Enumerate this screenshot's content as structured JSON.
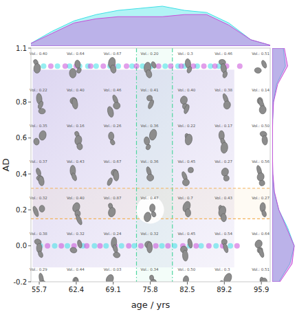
{
  "chart_data": {
    "type": "scatter",
    "x_label": "age / yrs",
    "y_label": "AD",
    "xlim": [
      54.2,
      97.5
    ],
    "ylim": [
      -0.2,
      1.1
    ],
    "xticks": [
      55.7,
      62.4,
      69.1,
      75.8,
      82.5,
      89.2,
      95.9
    ],
    "yticks": [
      -0.2,
      {
        "value": 0,
        "label": "0.0"
      },
      0.2,
      0.4,
      0.6,
      0.8,
      1.1
    ],
    "marker": "circle",
    "series": [
      {
        "color": "#3ee0e6",
        "x": [
          56.5,
          59,
          61.2,
          63,
          64.5,
          66,
          68.5,
          70,
          72.5,
          74.4,
          76,
          78.5,
          80.8,
          82,
          84.3,
          86.7,
          88.2,
          55.9,
          58.5,
          60.8,
          63.6,
          65.7,
          67.8,
          70.6,
          72.9,
          75.5,
          77.9,
          80.2,
          82.9,
          85,
          87.7,
          90.3
        ],
        "values": [
          1,
          1,
          1,
          1,
          1,
          1,
          1,
          1,
          1,
          1,
          1,
          1,
          1,
          1,
          1,
          1,
          1,
          0,
          0,
          0,
          0,
          0,
          0,
          0,
          0,
          0,
          0,
          0,
          0,
          0,
          0,
          0
        ]
      },
      {
        "color": "#c84fd8",
        "x": [
          57.8,
          60.4,
          62.4,
          65,
          67.3,
          69.1,
          71.5,
          73.3,
          75.2,
          77.3,
          79.5,
          81.4,
          83.6,
          85.5,
          87.5,
          89.6,
          92,
          57.2,
          59.7,
          62,
          64.3,
          66.7,
          69.4,
          71.9,
          74.1,
          76.8,
          79,
          81.7,
          84.1,
          86.4,
          88.9,
          91.5
        ],
        "values": [
          1,
          1,
          1,
          1,
          1,
          1,
          1,
          1,
          1,
          1,
          1,
          1,
          1,
          1,
          1,
          1,
          1,
          0,
          0,
          0,
          0,
          0,
          0,
          0,
          0,
          0,
          0,
          0,
          0,
          0,
          0,
          0
        ]
      }
    ],
    "thumbnails": {
      "x": [
        55.7,
        62.4,
        69.1,
        75.8,
        82.5,
        89.2,
        95.9
      ],
      "y": [
        1.06,
        0.86,
        0.66,
        0.46,
        0.26,
        0.06,
        -0.14
      ],
      "labels": [
        [
          "Vol.: 0.40",
          "Vol.: 0.64",
          "Vol.: 0.67",
          "Vol.: 0.20",
          "Vol.: 0.3",
          "Vol.: 0.46",
          "Vol.: 0.51"
        ],
        [
          "Vol.: 0.22",
          "Vol.: 0.40",
          "Vol.: 0.46",
          "Vol.: 0.41",
          "Vol.: 0.40",
          "Vol.: 0.38",
          "Vol.: 0.14"
        ],
        [
          "Vol.: 0.35",
          "Vol.: 0.16",
          "Vol.: 0.26",
          "Vol.: 0.36",
          "Vol.: 0.22",
          "Vol.: 0.17",
          "Vol.: 0.50"
        ],
        [
          "Vol.: 0.37",
          "Vol.: 0.43",
          "Vol.: 0.67",
          "Vol.: 0.36",
          "Vol.: 0.45",
          "Vol.: 0.27",
          "Vol.: 0.56"
        ],
        [
          "Vol.: 0.32",
          "Vol.: 0.40",
          "Vol.: 0.87",
          "Vol.: 0.47",
          "Vol.: 0.7",
          "Vol.: 0.43",
          "Vol.: 0.27"
        ],
        [
          "Vol.: 0.38",
          "Vol.: 0.32",
          "Vol.: 0.24",
          "Vol.: 0.32",
          "Vol.: 0.45",
          "Vol.: 0.54",
          "Vol.: 0.64"
        ],
        [
          "Vol.: 0.29",
          "Vol.: 0.44",
          "Vol.: 0.03",
          "Vol.: 0.34",
          "Vol.: 0.50",
          "Vol.: 0.3",
          "Vol.: 0.51"
        ]
      ]
    },
    "shaded_region": {
      "x": [
        54.5,
        91
      ],
      "y": [
        -0.12,
        0.98
      ]
    },
    "x_band": [
      73.3,
      79.8
    ],
    "y_band": [
      0.15,
      0.32
    ],
    "highlight": {
      "x": 75.8,
      "y": 0.2
    },
    "top_density": {
      "x": [
        54,
        58,
        62,
        66,
        70,
        74,
        78,
        82,
        86,
        90,
        94,
        97.5
      ],
      "series": [
        {
          "color": "#3ee0e6",
          "values": [
            0.05,
            0.35,
            0.6,
            0.75,
            0.85,
            0.9,
            0.95,
            0.85,
            0.8,
            0.55,
            0.15,
            0.02
          ]
        },
        {
          "color": "#c84fd8",
          "values": [
            0.05,
            0.3,
            0.55,
            0.65,
            0.7,
            0.7,
            0.7,
            0.75,
            0.75,
            0.5,
            0.15,
            0.02
          ]
        }
      ]
    },
    "right_density": {
      "y": [
        -0.2,
        -0.1,
        0,
        0.1,
        0.2,
        0.3,
        0.4,
        0.5,
        0.6,
        0.7,
        0.8,
        0.9,
        1.0,
        1.1
      ],
      "series": [
        {
          "color": "#3ee0e6",
          "values": [
            0.3,
            0.8,
            1.0,
            0.7,
            0.3,
            0.08,
            0.02,
            0.01,
            0.01,
            0.02,
            0.05,
            0.2,
            0.6,
            0.5
          ]
        },
        {
          "color": "#c84fd8",
          "values": [
            0.35,
            0.9,
            1.0,
            0.65,
            0.3,
            0.1,
            0.03,
            0.01,
            0.01,
            0.02,
            0.06,
            0.25,
            0.7,
            0.55
          ]
        }
      ]
    }
  }
}
